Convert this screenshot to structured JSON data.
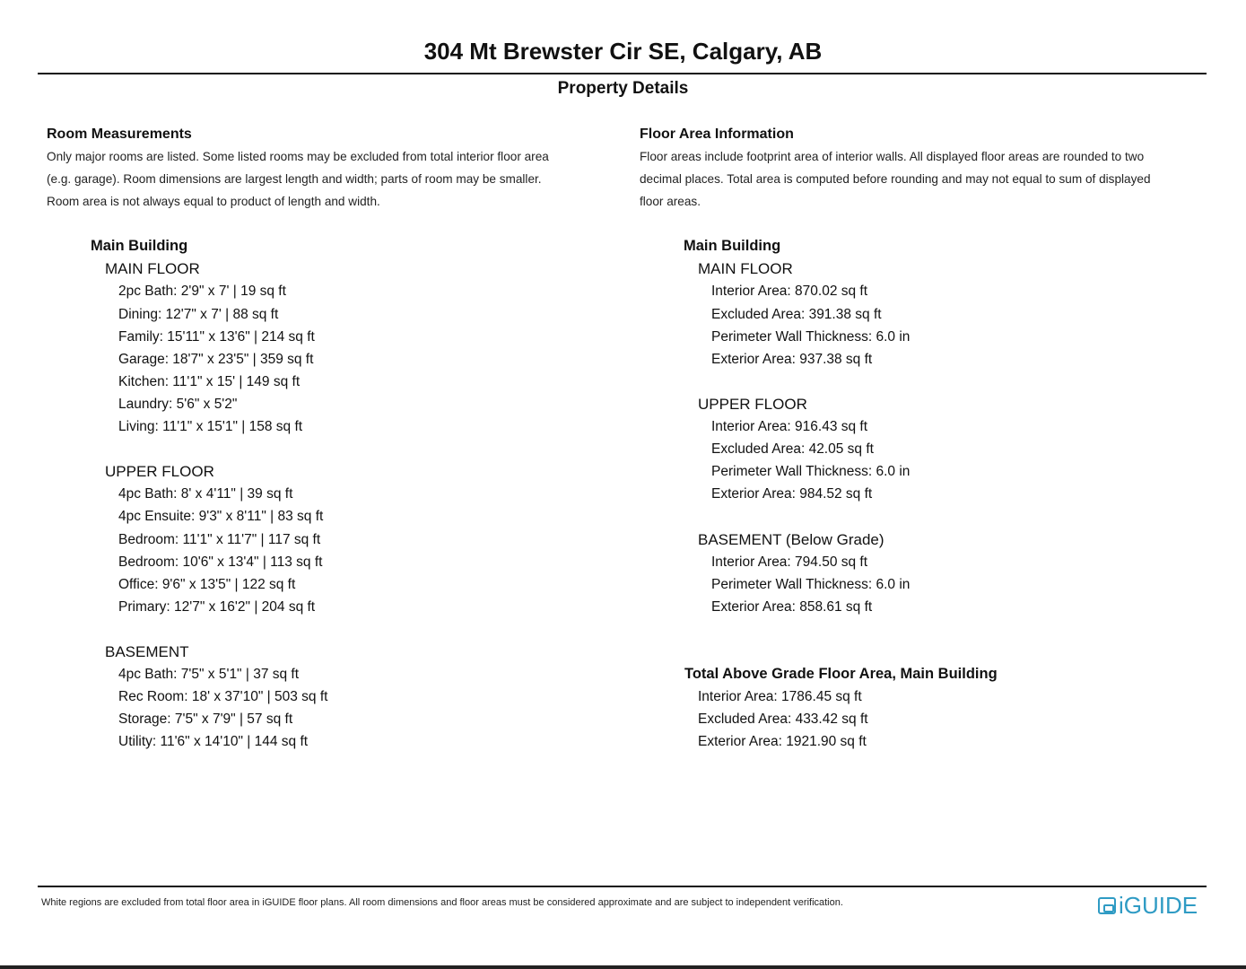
{
  "title": "304 Mt Brewster Cir SE, Calgary, AB",
  "subtitle": "Property Details",
  "left": {
    "heading": "Room Measurements",
    "note_lines": [
      "Only major rooms are listed. Some listed rooms may be excluded from total interior floor area",
      "(e.g. garage). Room dimensions are largest length and width; parts of room may be smaller.",
      "Room area is not always equal to product of length and width."
    ],
    "building": "Main Building",
    "floors": [
      {
        "name": "MAIN FLOOR",
        "items": [
          "2pc Bath: 2'9\" x 7' | 19 sq ft",
          "Dining: 12'7\" x 7' | 88 sq ft",
          "Family: 15'11\" x 13'6\" | 214 sq ft",
          "Garage: 18'7\" x 23'5\" | 359 sq ft",
          "Kitchen: 11'1\" x 15' | 149 sq ft",
          "Laundry: 5'6\" x 5'2\"",
          "Living: 11'1\" x 15'1\" | 158 sq ft"
        ]
      },
      {
        "name": "UPPER FLOOR",
        "items": [
          "4pc Bath: 8' x 4'11\" | 39 sq ft",
          "4pc Ensuite: 9'3\" x 8'11\" | 83 sq ft",
          "Bedroom: 11'1\" x 11'7\" | 117 sq ft",
          "Bedroom: 10'6\" x 13'4\" | 113 sq ft",
          "Office: 9'6\" x 13'5\" | 122 sq ft",
          "Primary: 12'7\" x 16'2\" | 204 sq ft"
        ]
      },
      {
        "name": "BASEMENT",
        "items": [
          "4pc Bath: 7'5\" x 5'1\" | 37 sq ft",
          "Rec Room: 18' x 37'10\" | 503 sq ft",
          "Storage: 7'5\" x 7'9\" | 57 sq ft",
          "Utility: 11'6\" x 14'10\" | 144 sq ft"
        ]
      }
    ]
  },
  "right": {
    "heading": "Floor Area Information",
    "note_lines": [
      "Floor areas include footprint area of interior walls. All displayed floor areas are rounded to two",
      "decimal places. Total area is computed before rounding and may not equal to sum of displayed",
      "floor areas."
    ],
    "building": "Main Building",
    "floors": [
      {
        "name": "MAIN FLOOR",
        "items": [
          "Interior Area: 870.02 sq ft",
          "Excluded Area: 391.38 sq ft",
          "Perimeter Wall Thickness: 6.0 in",
          "Exterior Area: 937.38 sq ft"
        ]
      },
      {
        "name": "UPPER FLOOR",
        "items": [
          "Interior Area: 916.43 sq ft",
          "Excluded Area: 42.05 sq ft",
          "Perimeter Wall Thickness: 6.0 in",
          "Exterior Area: 984.52 sq ft"
        ]
      },
      {
        "name": "BASEMENT (Below Grade)",
        "items": [
          "Interior Area: 794.50 sq ft",
          "Perimeter Wall Thickness: 6.0 in",
          "Exterior Area: 858.61 sq ft"
        ]
      }
    ],
    "total": {
      "heading": "Total Above Grade Floor Area, Main Building",
      "items": [
        "Interior Area: 1786.45 sq ft",
        "Excluded Area: 433.42 sq ft",
        "Exterior Area: 1921.90 sq ft"
      ]
    }
  },
  "footer": {
    "disclaimer": "White regions are excluded from total floor area in iGUIDE floor plans. All room dimensions and floor areas must be considered approximate and are subject to independent verification.",
    "logo_text": "iGUIDE",
    "logo_color": "#2f9bc4"
  }
}
